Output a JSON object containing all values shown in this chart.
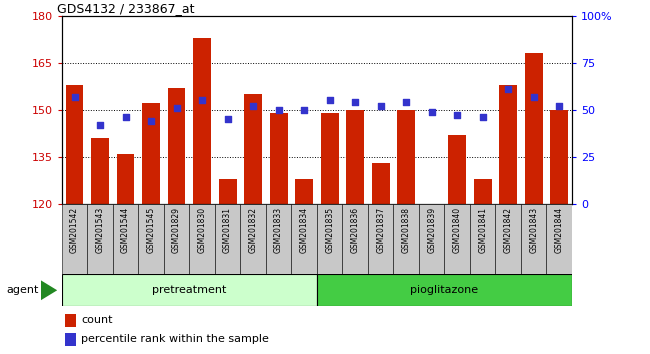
{
  "title": "GDS4132 / 233867_at",
  "samples": [
    "GSM201542",
    "GSM201543",
    "GSM201544",
    "GSM201545",
    "GSM201829",
    "GSM201830",
    "GSM201831",
    "GSM201832",
    "GSM201833",
    "GSM201834",
    "GSM201835",
    "GSM201836",
    "GSM201837",
    "GSM201838",
    "GSM201839",
    "GSM201840",
    "GSM201841",
    "GSM201842",
    "GSM201843",
    "GSM201844"
  ],
  "counts": [
    158,
    141,
    136,
    152,
    157,
    173,
    128,
    155,
    149,
    128,
    149,
    150,
    133,
    150,
    120,
    142,
    128,
    158,
    168,
    150
  ],
  "percentile": [
    57,
    42,
    46,
    44,
    51,
    55,
    45,
    52,
    50,
    50,
    55,
    54,
    52,
    54,
    49,
    47,
    46,
    61,
    57,
    52
  ],
  "ylim_left": [
    120,
    180
  ],
  "ylim_right": [
    0,
    100
  ],
  "yticks_left": [
    120,
    135,
    150,
    165,
    180
  ],
  "yticks_right": [
    0,
    25,
    50,
    75,
    100
  ],
  "ytick_labels_right": [
    "0",
    "25",
    "50",
    "75",
    "100%"
  ],
  "bar_color": "#cc2200",
  "dot_color": "#3333cc",
  "xtick_bg_color": "#c8c8c8",
  "pretreatment_color": "#ccffcc",
  "pioglitazone_color": "#44cc44",
  "n_pretreatment": 10,
  "n_pioglitazone": 10,
  "legend_count_label": "count",
  "legend_percentile_label": "percentile rank within the sample",
  "agent_label": "agent",
  "pretreatment_label": "pretreatment",
  "pioglitazone_label": "pioglitazone"
}
